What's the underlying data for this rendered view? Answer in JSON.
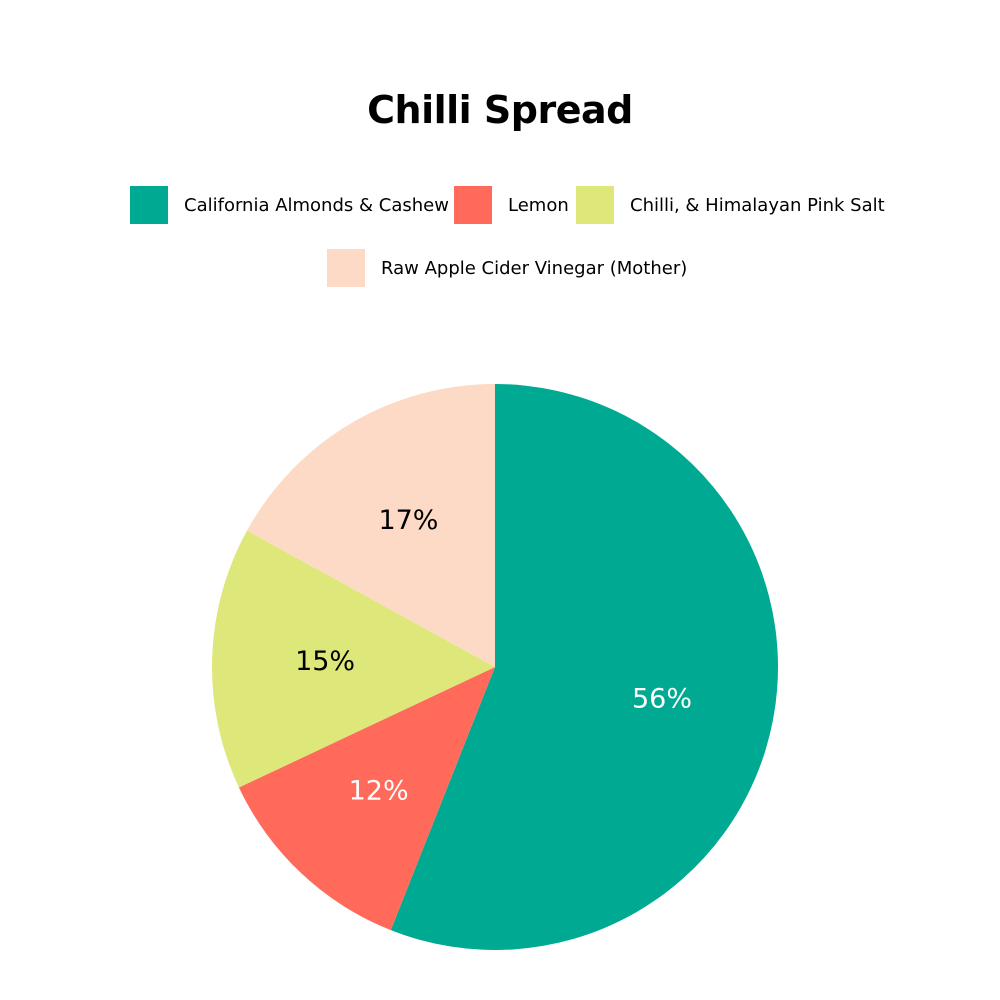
{
  "chart_data": {
    "type": "pie",
    "title": "Chilli Spread",
    "legend_position": "top",
    "slices": [
      {
        "label": "California Almonds & Cashew",
        "value": 56,
        "display": "56%",
        "color": "#00A991",
        "label_color": "#ffffff"
      },
      {
        "label": "Lemon",
        "value": 12,
        "display": "12%",
        "color": "#FF6A5A",
        "label_color": "#ffffff"
      },
      {
        "label": "Chilli, & Himalayan Pink Salt",
        "value": 15,
        "display": "15%",
        "color": "#DEE779",
        "label_color": "#000000"
      },
      {
        "label": "Raw Apple Cider Vinegar (Mother)",
        "value": 17,
        "display": "17%",
        "color": "#FDDAC6",
        "label_color": "#000000"
      }
    ]
  }
}
